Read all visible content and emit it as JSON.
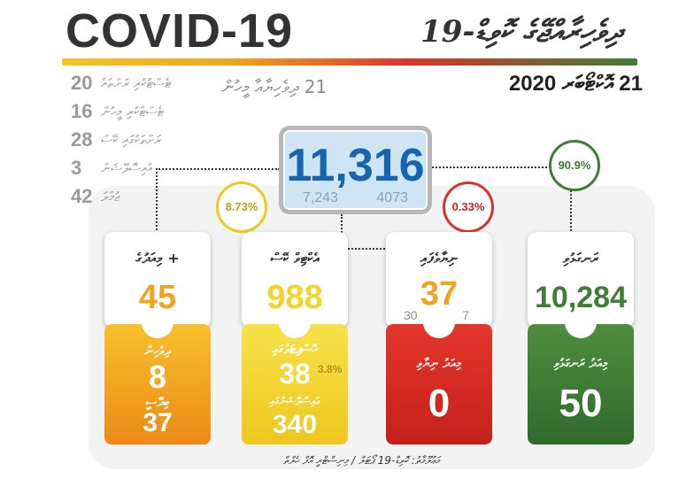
{
  "header": {
    "title_en": "COVID-19",
    "title_dv": "ދިވެހިރާއްޖޭގެ ކޮވިޑް-19"
  },
  "date": "21 އޮކްޓޯބަރ 2020",
  "note21": "21 ދިވެހިޔާއާ މީހުން",
  "stats": [
    {
      "num": "20",
      "label": "ޓެސްޓުކުރި ރަށްތައް"
    },
    {
      "num": "16",
      "label": "ޓެސްޓްކުރި މީހުން"
    },
    {
      "num": "28",
      "label": "ރަށްތަކުގައި ކޭސް"
    },
    {
      "num": "3",
      "label": "އައިސޮލޭޝަން"
    },
    {
      "num": "42",
      "label": "ޖުމްލަ"
    }
  ],
  "total": {
    "value": "11,316",
    "left": "7,243",
    "right": "4073"
  },
  "percents": {
    "yellow": "8.73%",
    "red": "0.33%",
    "green": "90.9%"
  },
  "columns": {
    "orange": {
      "top_label": "+ މިއަދުގެ",
      "top_value": "45",
      "bottom_label_1": "ދިވެހިން",
      "bottom_value_1": "8",
      "bottom_label_2": "ބިދޭސީ",
      "bottom_value_2": "37"
    },
    "yellow": {
      "top_label": "އެކްޓިވް ކޭސް",
      "top_value": "988",
      "bottom_label_1": "ހޮސްޕިޓަލުގައި",
      "bottom_value_1": "38",
      "bottom_small": "3.8%",
      "bottom_label_2": "އައިސޮލޭޝަނުގައި",
      "bottom_value_2": "340"
    },
    "red": {
      "top_label": "ނިޔާވެފައި",
      "top_value": "37",
      "sub_left": "30",
      "sub_right": "7",
      "bottom_label_1": "މިއަދު ނިޔާވި",
      "bottom_value_1": "0"
    },
    "green": {
      "top_label": "ރަނގަޅުވި",
      "top_value": "10,284",
      "bottom_label_1": "މިއަދު ރަނގަޅުވި",
      "bottom_value_1": "50"
    }
  },
  "footer": "މަޢުލޫމާތު: ކޮވިޑް-19 ޕޯޓަލް / މިނިސްޓްރީ އޮފް ހެލްތް",
  "colors": {
    "orange": "#f0a41f",
    "yellow": "#f2d42a",
    "red": "#d8342a",
    "green": "#3f7d36",
    "blue": "#1565b0"
  }
}
